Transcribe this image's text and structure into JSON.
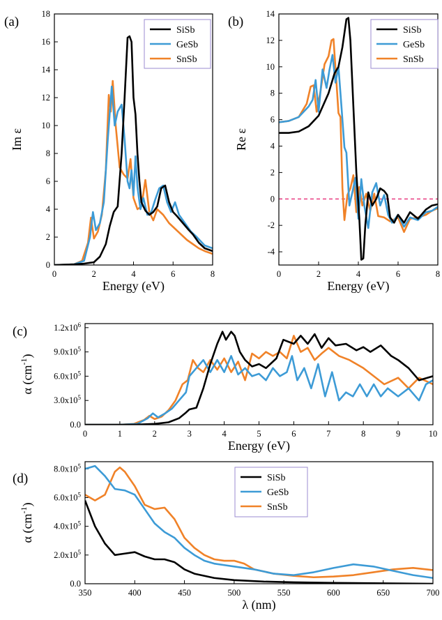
{
  "colors": {
    "SiSb": "#000000",
    "GeSb": "#3d9bd6",
    "SnSb": "#f08228",
    "zero_line": "#e6307a"
  },
  "series_names": [
    "SiSb",
    "GeSb",
    "SnSb"
  ],
  "chart_data": [
    {
      "panel": "(a)",
      "type": "line",
      "xlabel": "Energy (eV)",
      "ylabel": "Im ε",
      "xlim": [
        0,
        8
      ],
      "ylim": [
        0,
        18
      ],
      "xticks": [
        "0",
        "2",
        "4",
        "6",
        "8"
      ],
      "yticks": [
        "0",
        "2",
        "4",
        "6",
        "8",
        "10",
        "12",
        "14",
        "16",
        "18"
      ],
      "legend": "top-right",
      "series": [
        {
          "name": "SiSb",
          "x": [
            0,
            1,
            1.5,
            2,
            2.3,
            2.6,
            2.8,
            3,
            3.2,
            3.4,
            3.55,
            3.7,
            3.8,
            3.9,
            4.0,
            4.1,
            4.2,
            4.3,
            4.4,
            4.6,
            4.8,
            5.0,
            5.2,
            5.4,
            5.6,
            5.8,
            6.0,
            6.2,
            6.5,
            6.8,
            7.0,
            7.3,
            7.6,
            8.0
          ],
          "y": [
            0,
            0.05,
            0.1,
            0.2,
            0.6,
            1.5,
            2.8,
            3.8,
            4.2,
            8,
            12,
            16.3,
            16.4,
            16,
            12,
            10.8,
            8,
            6,
            4.5,
            3.9,
            3.6,
            3.8,
            4.2,
            5.5,
            5.7,
            4.5,
            3.8,
            3.5,
            3.0,
            2.5,
            2.2,
            1.6,
            1.2,
            1.0
          ]
        },
        {
          "name": "GeSb",
          "x": [
            0,
            1,
            1.5,
            1.8,
            1.95,
            2.1,
            2.3,
            2.5,
            2.7,
            2.9,
            3.05,
            3.2,
            3.4,
            3.55,
            3.7,
            3.8,
            3.9,
            4.0,
            4.1,
            4.2,
            4.35,
            4.5,
            4.7,
            4.9,
            5.1,
            5.3,
            5.5,
            5.7,
            5.9,
            6.1,
            6.3,
            6.6,
            6.9,
            7.2,
            7.6,
            8.0
          ],
          "y": [
            0,
            0.05,
            0.3,
            2.0,
            3.8,
            2.5,
            3.0,
            4.5,
            9.0,
            12.8,
            10.0,
            11.0,
            11.5,
            9.0,
            6.0,
            5.5,
            6.8,
            5.0,
            7.8,
            5.6,
            4.0,
            4.8,
            3.6,
            3.8,
            4.7,
            5.5,
            5.7,
            4.5,
            3.8,
            4.5,
            3.6,
            3.0,
            2.4,
            2.0,
            1.4,
            1.2
          ]
        },
        {
          "name": "SnSb",
          "x": [
            0,
            1,
            1.4,
            1.7,
            1.85,
            2.0,
            2.2,
            2.4,
            2.6,
            2.75,
            2.85,
            2.95,
            3.1,
            3.3,
            3.5,
            3.7,
            3.85,
            4.0,
            4.2,
            4.4,
            4.6,
            4.8,
            5.0,
            5.2,
            5.5,
            5.8,
            6.1,
            6.4,
            6.7,
            7.0,
            7.3,
            7.6,
            8.0
          ],
          "y": [
            0,
            0.05,
            0.3,
            1.6,
            3.4,
            1.9,
            2.4,
            3.6,
            6.8,
            12.2,
            11.0,
            13.2,
            10.0,
            7.0,
            6.5,
            6.2,
            7.6,
            4.8,
            4.0,
            4.2,
            6.1,
            3.8,
            3.2,
            4.0,
            3.6,
            3.0,
            2.6,
            2.2,
            1.8,
            1.5,
            1.2,
            1.0,
            0.8
          ]
        }
      ]
    },
    {
      "panel": "(b)",
      "type": "line",
      "xlabel": "Energy (eV)",
      "ylabel": "Re ε",
      "xlim": [
        0,
        8
      ],
      "ylim": [
        -5,
        14
      ],
      "xticks": [
        "0",
        "2",
        "4",
        "6",
        "8"
      ],
      "yticks": [
        "-4",
        "-2",
        "0",
        "2",
        "4",
        "6",
        "8",
        "10",
        "12",
        "14"
      ],
      "legend": "top-right",
      "reference_line_y": 0,
      "series": [
        {
          "name": "SiSb",
          "x": [
            0,
            0.5,
            1.0,
            1.5,
            2.0,
            2.5,
            2.8,
            3.0,
            3.2,
            3.4,
            3.5,
            3.6,
            3.75,
            3.9,
            4.05,
            4.15,
            4.25,
            4.35,
            4.5,
            4.7,
            4.9,
            5.1,
            5.3,
            5.45,
            5.6,
            5.8,
            6.0,
            6.3,
            6.6,
            7.0,
            7.4,
            7.7,
            8.0
          ],
          "y": [
            5.0,
            5.0,
            5.1,
            5.5,
            6.3,
            8.0,
            9.5,
            10.0,
            11.5,
            13.6,
            13.7,
            12.0,
            7.0,
            2.0,
            -1.5,
            -4.6,
            -4.5,
            -2.0,
            0.5,
            -0.5,
            0.0,
            0.8,
            0.6,
            0.3,
            -1.4,
            -1.8,
            -1.2,
            -1.8,
            -1.0,
            -1.5,
            -0.8,
            -0.5,
            -0.4
          ]
        },
        {
          "name": "GeSb",
          "x": [
            0,
            0.5,
            1.0,
            1.5,
            1.7,
            1.85,
            2.0,
            2.2,
            2.4,
            2.55,
            2.7,
            2.85,
            3.0,
            3.15,
            3.3,
            3.4,
            3.55,
            3.7,
            3.85,
            4.0,
            4.15,
            4.3,
            4.5,
            4.7,
            4.9,
            5.1,
            5.3,
            5.5,
            5.7,
            6.0,
            6.3,
            6.6,
            7.0,
            7.4,
            7.7,
            8.0
          ],
          "y": [
            5.8,
            5.9,
            6.2,
            7.0,
            7.5,
            9.0,
            6.6,
            9.8,
            8.4,
            9.8,
            10.9,
            8.8,
            10.0,
            7.0,
            3.9,
            3.5,
            -0.5,
            0.5,
            1.6,
            -1.5,
            1.5,
            -0.5,
            -2.2,
            0.5,
            1.2,
            -0.5,
            0.3,
            -1.2,
            -1.8,
            -1.2,
            -2.1,
            -1.4,
            -1.6,
            -1.0,
            -0.9,
            -0.6
          ]
        },
        {
          "name": "SnSb",
          "x": [
            0,
            0.5,
            1.0,
            1.4,
            1.6,
            1.75,
            1.9,
            2.1,
            2.3,
            2.5,
            2.65,
            2.75,
            2.9,
            3.0,
            3.1,
            3.2,
            3.3,
            3.45,
            3.6,
            3.75,
            3.9,
            4.05,
            4.2,
            4.4,
            4.6,
            4.8,
            5.0,
            5.3,
            5.6,
            6.0,
            6.3,
            6.6,
            7.0,
            7.4,
            7.7,
            8.0
          ],
          "y": [
            5.8,
            5.9,
            6.2,
            7.2,
            8.5,
            8.6,
            6.6,
            8.2,
            10.2,
            10.8,
            12.0,
            12.1,
            8.8,
            6.5,
            6.2,
            0.8,
            -1.6,
            0.3,
            0.8,
            1.8,
            -1.0,
            0.9,
            -0.5,
            0.4,
            -0.9,
            0.4,
            -1.3,
            -1.4,
            -1.7,
            -1.4,
            -2.5,
            -1.5,
            -1.4,
            -1.2,
            -0.9,
            -0.7
          ]
        }
      ]
    },
    {
      "panel": "(c)",
      "type": "line",
      "xlabel": "Energy (eV)",
      "ylabel": "α (cm⁻¹)",
      "xlim": [
        0,
        10
      ],
      "ylim": [
        0,
        1.25
      ],
      "y_unit_note": "values in units of 10^6 cm^-1",
      "xticks": [
        "0",
        "1",
        "2",
        "3",
        "4",
        "5",
        "6",
        "7",
        "8",
        "9",
        "10"
      ],
      "yticks": [
        "0.0",
        "3.0x10⁵",
        "6.0x10⁵",
        "9.0x10⁵",
        "1.2x10⁶"
      ],
      "series": [
        {
          "name": "SiSb",
          "x": [
            0,
            1,
            1.5,
            2.0,
            2.4,
            2.7,
            2.9,
            3.0,
            3.2,
            3.4,
            3.6,
            3.8,
            3.95,
            4.05,
            4.2,
            4.3,
            4.45,
            4.6,
            4.8,
            5.0,
            5.2,
            5.5,
            5.7,
            6.0,
            6.2,
            6.4,
            6.6,
            6.8,
            7.0,
            7.2,
            7.5,
            7.8,
            8.0,
            8.2,
            8.5,
            8.8,
            9.0,
            9.3,
            9.6,
            10.0
          ],
          "y": [
            0,
            0,
            0.002,
            0.01,
            0.03,
            0.08,
            0.15,
            0.19,
            0.21,
            0.45,
            0.75,
            1.0,
            1.15,
            1.05,
            1.15,
            1.1,
            0.9,
            0.8,
            0.72,
            0.75,
            0.7,
            0.82,
            1.05,
            1.0,
            1.1,
            1.0,
            1.12,
            0.95,
            1.07,
            0.98,
            1.0,
            0.92,
            0.96,
            0.9,
            0.98,
            0.85,
            0.8,
            0.7,
            0.55,
            0.6
          ]
        },
        {
          "name": "GeSb",
          "x": [
            0,
            1,
            1.5,
            1.8,
            1.95,
            2.1,
            2.3,
            2.5,
            2.7,
            2.9,
            3.0,
            3.2,
            3.4,
            3.6,
            3.8,
            4.0,
            4.2,
            4.4,
            4.6,
            4.8,
            5.0,
            5.2,
            5.4,
            5.6,
            5.8,
            5.95,
            6.1,
            6.3,
            6.5,
            6.7,
            6.9,
            7.1,
            7.3,
            7.5,
            7.7,
            7.9,
            8.1,
            8.3,
            8.5,
            8.7,
            9.0,
            9.3,
            9.6,
            9.8,
            10.0
          ],
          "y": [
            0,
            0,
            0.01,
            0.08,
            0.14,
            0.09,
            0.14,
            0.2,
            0.3,
            0.4,
            0.6,
            0.7,
            0.8,
            0.65,
            0.8,
            0.65,
            0.85,
            0.62,
            0.7,
            0.6,
            0.63,
            0.55,
            0.7,
            0.6,
            0.65,
            0.85,
            0.55,
            0.7,
            0.45,
            0.75,
            0.35,
            0.65,
            0.3,
            0.4,
            0.35,
            0.5,
            0.35,
            0.5,
            0.35,
            0.45,
            0.35,
            0.45,
            0.3,
            0.5,
            0.55
          ]
        },
        {
          "name": "SnSb",
          "x": [
            0,
            1,
            1.4,
            1.7,
            1.85,
            2.0,
            2.2,
            2.4,
            2.6,
            2.8,
            2.95,
            3.1,
            3.25,
            3.4,
            3.6,
            3.8,
            4.0,
            4.2,
            4.4,
            4.6,
            4.8,
            5.0,
            5.2,
            5.4,
            5.6,
            5.8,
            6.0,
            6.2,
            6.4,
            6.6,
            6.8,
            7.0,
            7.3,
            7.6,
            8.0,
            8.3,
            8.6,
            9.0,
            9.3,
            9.6,
            10.0
          ],
          "y": [
            0,
            0,
            0.01,
            0.06,
            0.11,
            0.07,
            0.1,
            0.18,
            0.3,
            0.5,
            0.55,
            0.8,
            0.7,
            0.65,
            0.8,
            0.68,
            0.82,
            0.65,
            0.78,
            0.55,
            0.88,
            0.82,
            0.9,
            0.85,
            0.9,
            0.82,
            1.1,
            0.9,
            0.95,
            0.8,
            0.88,
            0.95,
            0.85,
            0.8,
            0.7,
            0.6,
            0.5,
            0.58,
            0.45,
            0.58,
            0.5
          ]
        }
      ]
    },
    {
      "panel": "(d)",
      "type": "line",
      "xlabel": "λ (nm)",
      "ylabel": "α (cm⁻¹)",
      "xlim": [
        350,
        700
      ],
      "ylim": [
        0,
        0.85
      ],
      "y_unit_note": "values in units of 10^6 cm^-1",
      "xticks": [
        "350",
        "400",
        "450",
        "500",
        "550",
        "600",
        "650",
        "700"
      ],
      "yticks": [
        "0.0",
        "2.0x10⁵",
        "4.0x10⁵",
        "6.0x10⁵",
        "8.0x10⁵"
      ],
      "legend": "top-center",
      "series": [
        {
          "name": "SiSb",
          "x": [
            350,
            360,
            370,
            380,
            390,
            400,
            410,
            420,
            430,
            440,
            450,
            460,
            480,
            500,
            530,
            560,
            600,
            650,
            700
          ],
          "y": [
            0.58,
            0.4,
            0.28,
            0.2,
            0.21,
            0.22,
            0.19,
            0.17,
            0.17,
            0.15,
            0.1,
            0.07,
            0.04,
            0.025,
            0.015,
            0.01,
            0.006,
            0.003,
            0.0
          ]
        },
        {
          "name": "GeSb",
          "x": [
            350,
            360,
            370,
            380,
            390,
            400,
            410,
            420,
            430,
            440,
            450,
            460,
            470,
            480,
            490,
            500,
            520,
            540,
            560,
            580,
            600,
            620,
            640,
            660,
            680,
            700
          ],
          "y": [
            0.8,
            0.82,
            0.75,
            0.66,
            0.65,
            0.62,
            0.52,
            0.42,
            0.36,
            0.32,
            0.25,
            0.2,
            0.16,
            0.14,
            0.13,
            0.12,
            0.1,
            0.07,
            0.06,
            0.08,
            0.11,
            0.135,
            0.12,
            0.09,
            0.06,
            0.04
          ]
        },
        {
          "name": "SnSb",
          "x": [
            350,
            360,
            370,
            380,
            385,
            390,
            400,
            410,
            420,
            430,
            440,
            450,
            460,
            470,
            480,
            490,
            500,
            510,
            520,
            540,
            560,
            580,
            600,
            620,
            640,
            660,
            680,
            700
          ],
          "y": [
            0.62,
            0.58,
            0.62,
            0.78,
            0.81,
            0.78,
            0.68,
            0.55,
            0.52,
            0.53,
            0.45,
            0.32,
            0.25,
            0.2,
            0.17,
            0.16,
            0.16,
            0.14,
            0.1,
            0.07,
            0.055,
            0.045,
            0.05,
            0.06,
            0.08,
            0.1,
            0.11,
            0.095
          ]
        }
      ]
    }
  ]
}
